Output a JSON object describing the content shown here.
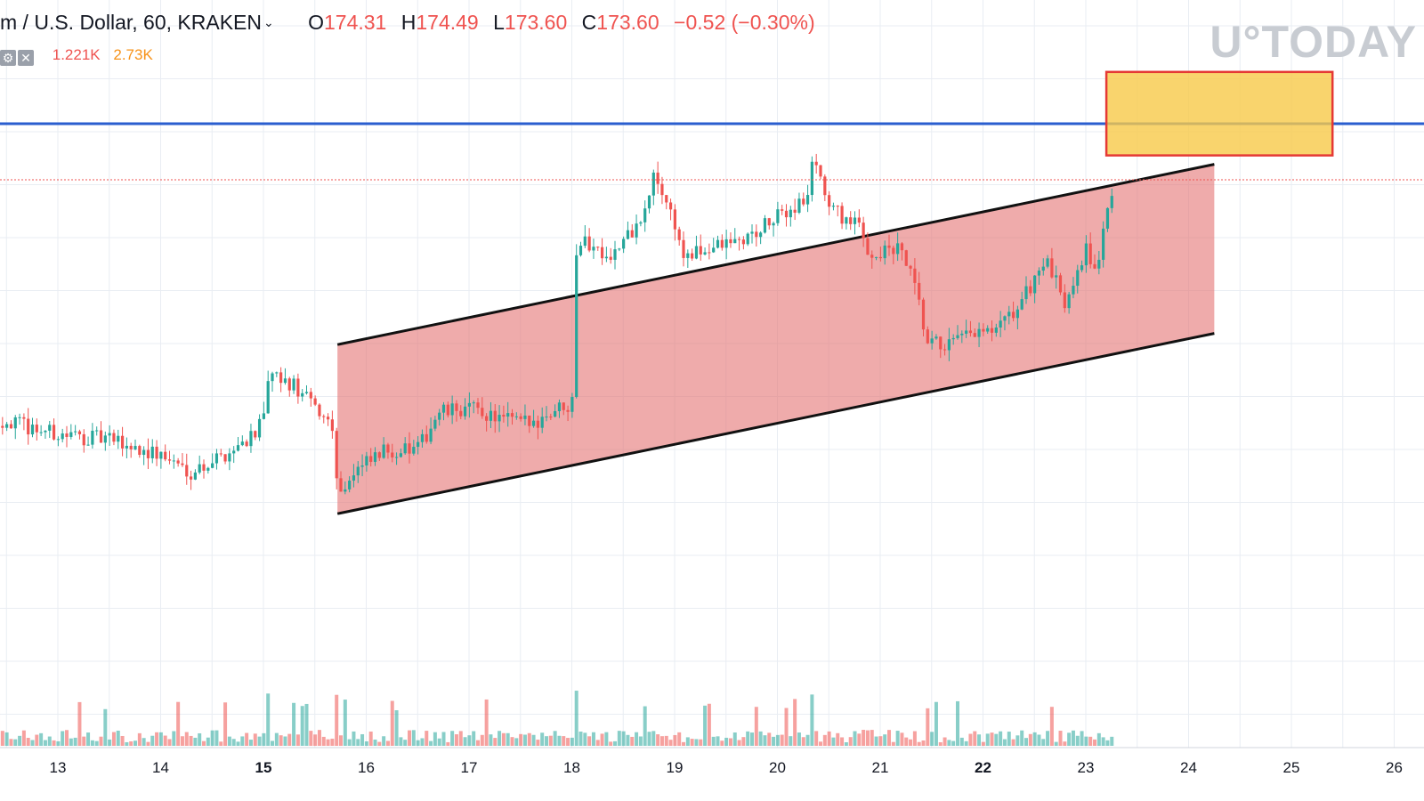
{
  "header": {
    "symbol": "m / U.S. Dollar, 60, KRAKEN",
    "open_label": "O",
    "open": "174.31",
    "high_label": "H",
    "high": "174.49",
    "low_label": "L",
    "low": "173.60",
    "close_label": "C",
    "close": "173.60",
    "change": "−0.52 (−0.30%)"
  },
  "volume": {
    "value1": "1.221K",
    "value2": "2.73K"
  },
  "watermark": "U°TODAY",
  "chart_data": {
    "type": "candlestick",
    "title": "",
    "x_axis_labels": [
      "13",
      "14",
      "15",
      "16",
      "17",
      "18",
      "19",
      "20",
      "21",
      "22",
      "23",
      "24",
      "25",
      "26"
    ],
    "bold_labels": [
      "15",
      "22"
    ],
    "last_price": 173.6,
    "resistance_level": 178.9,
    "channel": {
      "x_start_day": 15.72,
      "x_end_day": 24.25,
      "upper_start": 158.0,
      "lower_start": 142.0,
      "slope_per_day": 2.0
    },
    "target_zone": {
      "x_from_day": 23.2,
      "x_to_day": 25.4,
      "y_from": 175.9,
      "y_to": 183.8
    },
    "colors": {
      "up": "#26a69a",
      "down": "#ef5350",
      "resistance": "#2a5ecf",
      "channel_fill": "#e57373",
      "zone": "#f7c948"
    },
    "volume_note": "per-candle volume bars along bottom"
  }
}
